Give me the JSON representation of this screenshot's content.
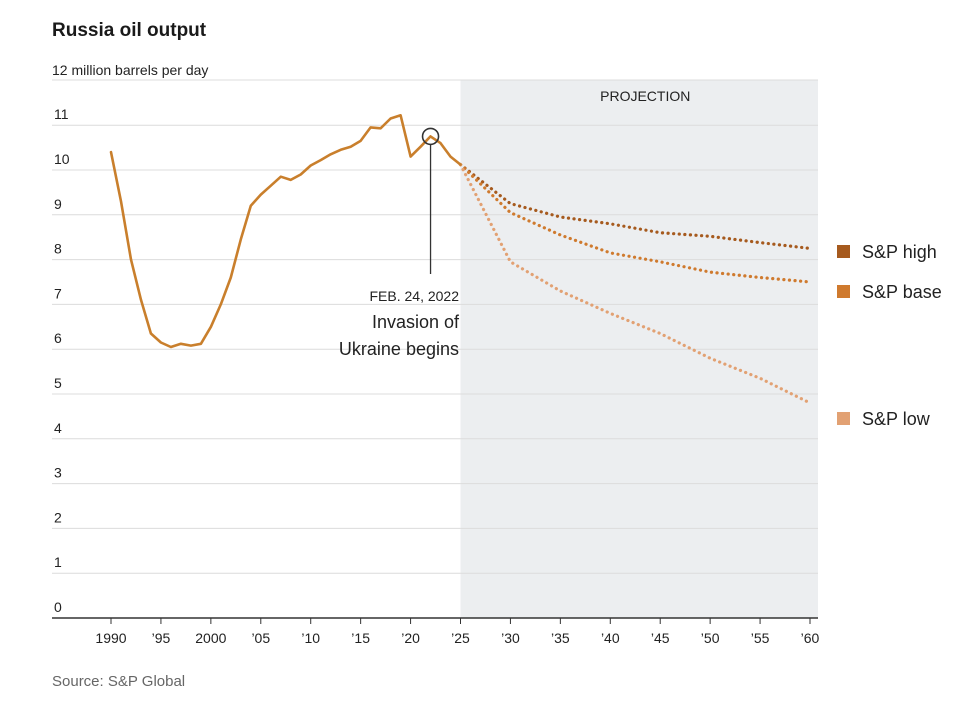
{
  "chart_data": {
    "type": "line",
    "title": "Russia oil output",
    "unit_label": "12 million barrels per day",
    "source": "Source: S&P Global",
    "x_range": [
      1990,
      2060
    ],
    "ylim": [
      0,
      12
    ],
    "y_ticks": [
      {
        "value": 0,
        "label": "0"
      },
      {
        "value": 1,
        "label": "1"
      },
      {
        "value": 2,
        "label": "2"
      },
      {
        "value": 3,
        "label": "3"
      },
      {
        "value": 4,
        "label": "4"
      },
      {
        "value": 5,
        "label": "5"
      },
      {
        "value": 6,
        "label": "6"
      },
      {
        "value": 7,
        "label": "7"
      },
      {
        "value": 8,
        "label": "8"
      },
      {
        "value": 9,
        "label": "9"
      },
      {
        "value": 10,
        "label": "10"
      },
      {
        "value": 11,
        "label": "11"
      }
    ],
    "x_ticks": [
      {
        "value": 1990,
        "label": "1990"
      },
      {
        "value": 1995,
        "label": "’95"
      },
      {
        "value": 2000,
        "label": "2000"
      },
      {
        "value": 2005,
        "label": "’05"
      },
      {
        "value": 2010,
        "label": "’10"
      },
      {
        "value": 2015,
        "label": "’15"
      },
      {
        "value": 2020,
        "label": "’20"
      },
      {
        "value": 2025,
        "label": "’25"
      },
      {
        "value": 2030,
        "label": "’30"
      },
      {
        "value": 2035,
        "label": "’35"
      },
      {
        "value": 2040,
        "label": "’40"
      },
      {
        "value": 2045,
        "label": "’45"
      },
      {
        "value": 2050,
        "label": "’50"
      },
      {
        "value": 2055,
        "label": "’55"
      },
      {
        "value": 2060,
        "label": "’60"
      }
    ],
    "grid": true,
    "projection": {
      "label": "PROJECTION",
      "from": 2025,
      "to": 2060,
      "shade_color": "#eceef0"
    },
    "historical": {
      "color": "#c97f2c",
      "points": [
        [
          1990,
          10.4
        ],
        [
          1991,
          9.3
        ],
        [
          1992,
          8.0
        ],
        [
          1993,
          7.1
        ],
        [
          1994,
          6.35
        ],
        [
          1995,
          6.15
        ],
        [
          1996,
          6.05
        ],
        [
          1997,
          6.12
        ],
        [
          1998,
          6.08
        ],
        [
          1999,
          6.12
        ],
        [
          2000,
          6.5
        ],
        [
          2001,
          7.0
        ],
        [
          2002,
          7.6
        ],
        [
          2003,
          8.45
        ],
        [
          2004,
          9.2
        ],
        [
          2005,
          9.45
        ],
        [
          2006,
          9.65
        ],
        [
          2007,
          9.85
        ],
        [
          2008,
          9.78
        ],
        [
          2009,
          9.9
        ],
        [
          2010,
          10.1
        ],
        [
          2011,
          10.22
        ],
        [
          2012,
          10.35
        ],
        [
          2013,
          10.45
        ],
        [
          2014,
          10.52
        ],
        [
          2015,
          10.65
        ],
        [
          2016,
          10.95
        ],
        [
          2017,
          10.93
        ],
        [
          2018,
          11.15
        ],
        [
          2019,
          11.22
        ],
        [
          2020,
          10.3
        ],
        [
          2021,
          10.52
        ],
        [
          2022,
          10.75
        ],
        [
          2023,
          10.6
        ],
        [
          2024,
          10.3
        ],
        [
          2025,
          10.12
        ]
      ]
    },
    "series": [
      {
        "name": "S&P high",
        "color": "#a65a1e",
        "points": [
          [
            2025,
            10.12
          ],
          [
            2030,
            9.25
          ],
          [
            2035,
            8.95
          ],
          [
            2040,
            8.8
          ],
          [
            2045,
            8.6
          ],
          [
            2050,
            8.52
          ],
          [
            2055,
            8.38
          ],
          [
            2060,
            8.25
          ]
        ]
      },
      {
        "name": "S&P base",
        "color": "#cf7a2e",
        "points": [
          [
            2025,
            10.12
          ],
          [
            2030,
            9.05
          ],
          [
            2035,
            8.55
          ],
          [
            2040,
            8.15
          ],
          [
            2045,
            7.95
          ],
          [
            2050,
            7.72
          ],
          [
            2055,
            7.6
          ],
          [
            2060,
            7.5
          ]
        ]
      },
      {
        "name": "S&P low",
        "color": "#e2a173",
        "points": [
          [
            2025,
            10.12
          ],
          [
            2030,
            7.95
          ],
          [
            2035,
            7.3
          ],
          [
            2040,
            6.8
          ],
          [
            2045,
            6.35
          ],
          [
            2050,
            5.8
          ],
          [
            2055,
            5.35
          ],
          [
            2060,
            4.8
          ]
        ]
      }
    ],
    "annotation": {
      "date": "FEB. 24, 2022",
      "line1": "Invasion of",
      "line2": "Ukraine begins",
      "x": 2022,
      "y": 10.75
    }
  }
}
